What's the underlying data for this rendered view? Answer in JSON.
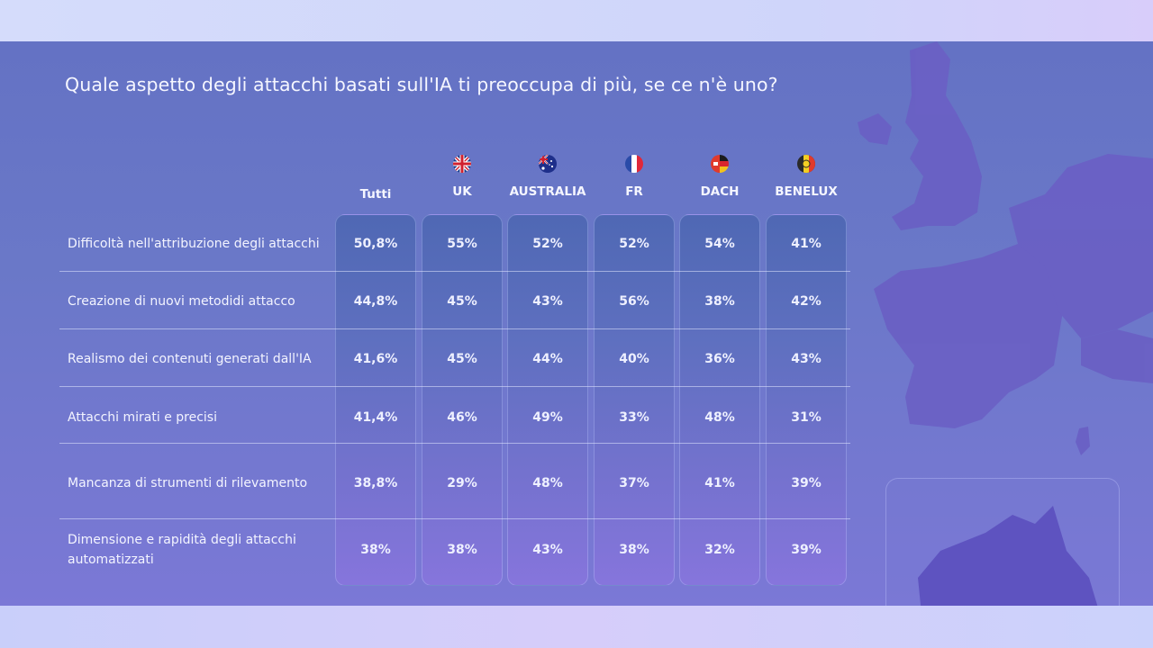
{
  "title": "Quale aspetto degli attacchi basati sull'IA ti preoccupa di più, se ce n'è uno?",
  "colors": {
    "panel": "#6a78c8",
    "column_top": "#4f68b4",
    "column_bottom": "#8675dc",
    "text": "#f3f4ff"
  },
  "chart_data": {
    "type": "table",
    "title": "Quale aspetto degli attacchi basati sull'IA ti preoccupa di più, se ce n'è uno?",
    "columns": [
      {
        "label": "Tutti",
        "flag": ""
      },
      {
        "label": "UK",
        "flag": "uk-flag-icon"
      },
      {
        "label": "AUSTRALIA",
        "flag": "australia-flag-icon"
      },
      {
        "label": "FR",
        "flag": "france-flag-icon"
      },
      {
        "label": "DACH",
        "flag": "germany-flag-icon"
      },
      {
        "label": "BENELUX",
        "flag": "belgium-flag-icon"
      }
    ],
    "rows": [
      {
        "label": "Difficoltà nell'attribuzione degli attacchi",
        "values": [
          "50,8%",
          "55%",
          "52%",
          "52%",
          "54%",
          "41%"
        ]
      },
      {
        "label": "Creazione di nuovi metodidi attacco",
        "values": [
          "44,8%",
          "45%",
          "43%",
          "56%",
          "38%",
          "42%"
        ]
      },
      {
        "label": "Realismo dei contenuti generati dall'IA",
        "values": [
          "41,6%",
          "45%",
          "44%",
          "40%",
          "36%",
          "43%"
        ]
      },
      {
        "label": "Attacchi mirati e precisi",
        "values": [
          "41,4%",
          "46%",
          "49%",
          "33%",
          "48%",
          "31%"
        ]
      },
      {
        "label": "Mancanza di strumenti di rilevamento",
        "values": [
          "38,8%",
          "29%",
          "48%",
          "37%",
          "41%",
          "39%"
        ]
      },
      {
        "label": "Dimensione e rapidità degli attacchi automatizzati",
        "values": [
          "38%",
          "38%",
          "43%",
          "38%",
          "32%",
          "39%"
        ]
      }
    ]
  }
}
